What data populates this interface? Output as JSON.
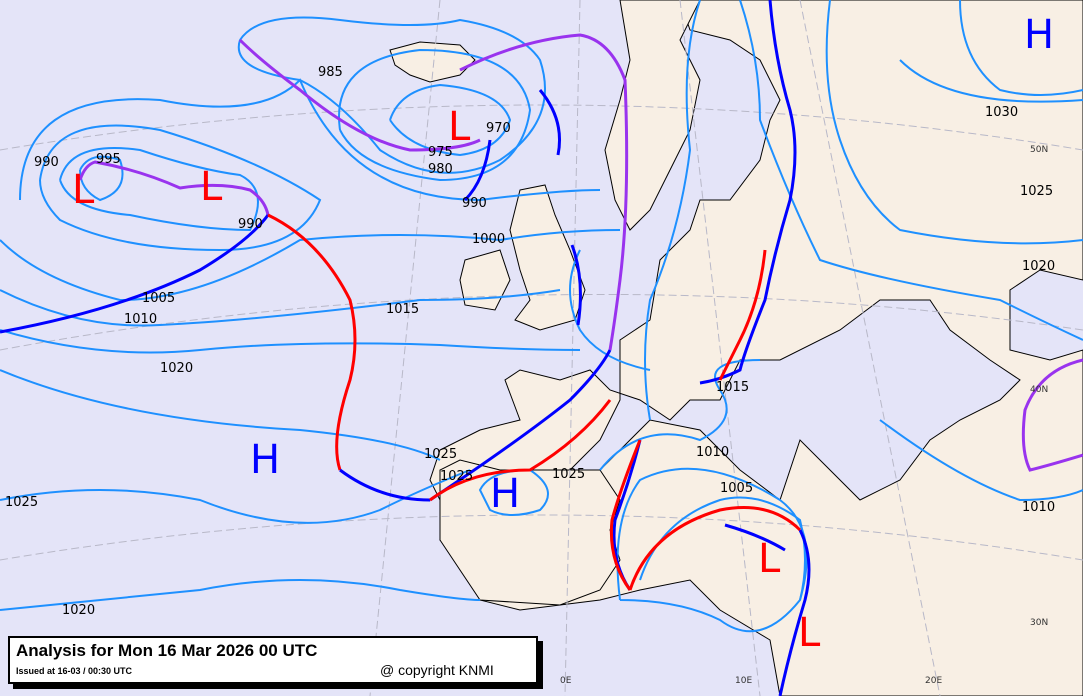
{
  "caption": {
    "title": "Analysis for Mon 16 Mar 2026 00 UTC",
    "issued": "Issued at 16-03 / 00:30 UTC",
    "copyright": "@ copyright KNMI"
  },
  "colors": {
    "sea": "#e4e4f8",
    "land": "#f8efe4",
    "isobar": "#1e90ff",
    "cold_front": "#0000ff",
    "warm_front": "#ff0000",
    "occluded_front": "#9933ee",
    "low": "#ff0000",
    "high": "#0000ff"
  },
  "pressure_centers": [
    "L",
    "L",
    "L",
    "L",
    "L",
    "H",
    "H",
    "H"
  ],
  "isobar_labels": [
    "985",
    "970",
    "975",
    "980",
    "990",
    "995",
    "990",
    "990",
    "1000",
    "1005",
    "1010",
    "1015",
    "1020",
    "1025",
    "1030",
    "1025",
    "1020",
    "1015",
    "1010",
    "1005",
    "1010",
    "1025",
    "1025",
    "1020",
    "1025"
  ],
  "grid_labels": [
    "50N",
    "40N",
    "30N",
    "0E",
    "10E",
    "20E"
  ]
}
